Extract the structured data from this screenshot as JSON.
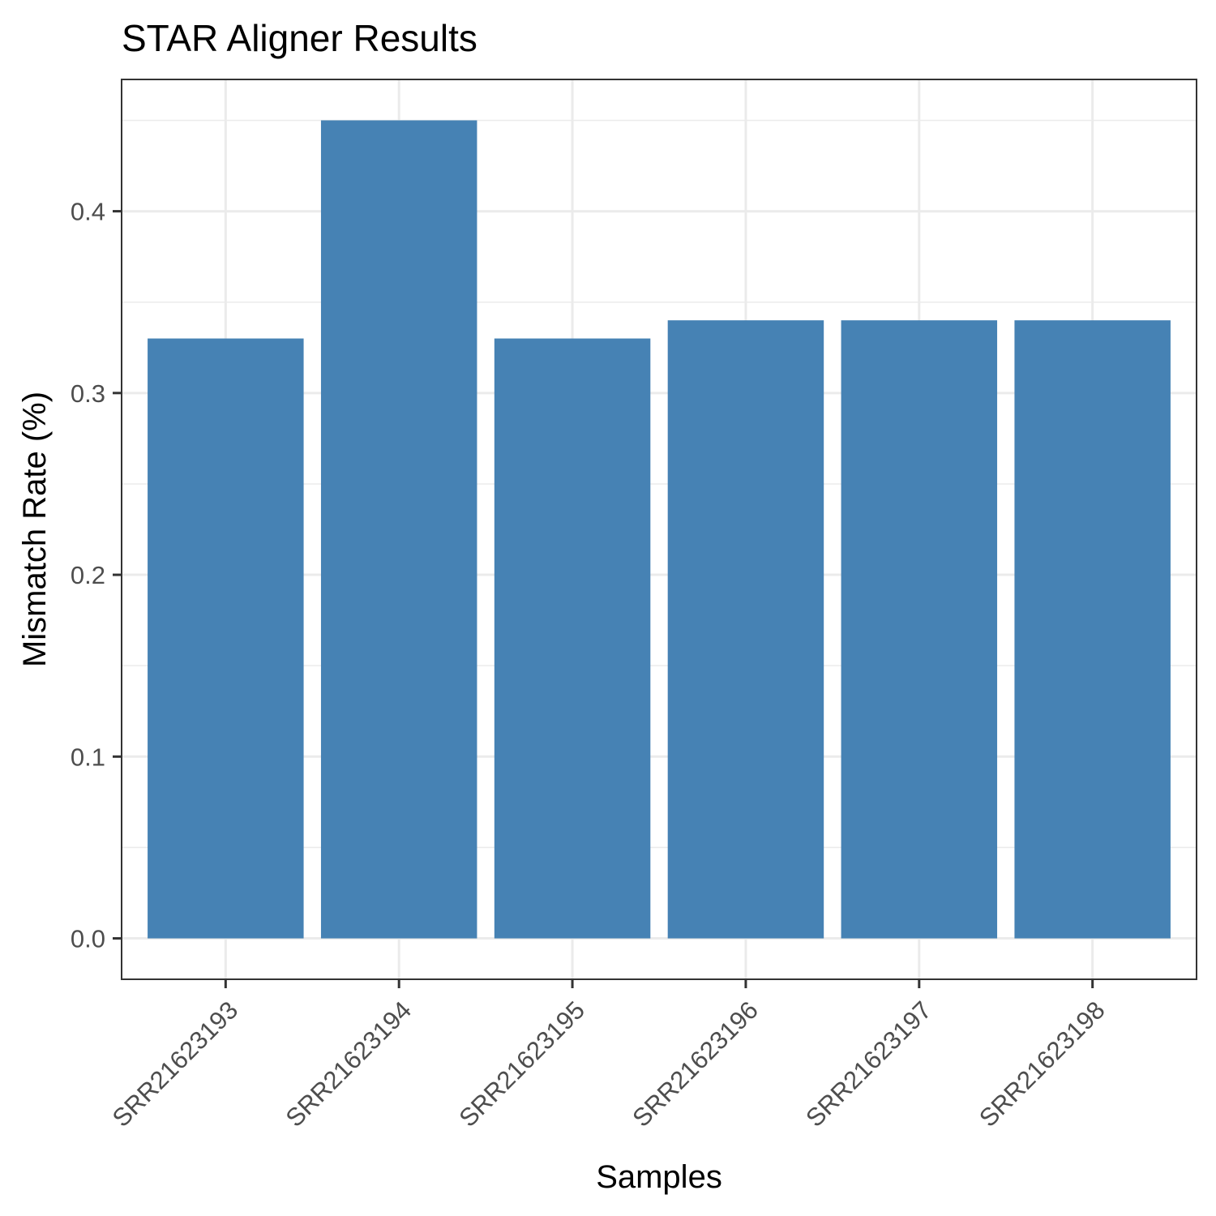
{
  "chart_data": {
    "type": "bar",
    "title": "STAR Aligner Results",
    "xlabel": "Samples",
    "ylabel": "Mismatch Rate (%)",
    "categories": [
      "SRR21623193",
      "SRR21623194",
      "SRR21623195",
      "SRR21623196",
      "SRR21623197",
      "SRR21623198"
    ],
    "values": [
      0.33,
      0.45,
      0.33,
      0.34,
      0.34,
      0.34
    ],
    "ylim": [
      -0.0225,
      0.4725
    ],
    "yticks": [
      0.0,
      0.1,
      0.2,
      0.3,
      0.4
    ],
    "ytick_labels": [
      "0.0",
      "0.1",
      "0.2",
      "0.3",
      "0.4"
    ],
    "bar_color": "#4682b4",
    "grid": true,
    "legend": "none"
  }
}
